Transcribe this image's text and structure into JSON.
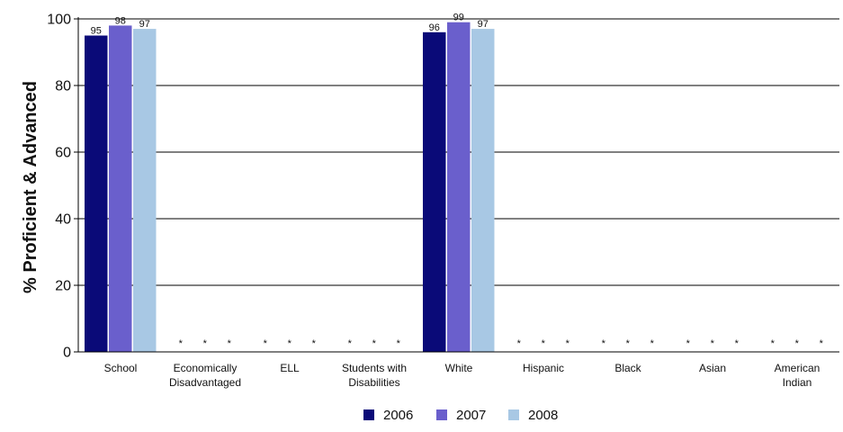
{
  "chart_data": {
    "type": "bar",
    "title": "",
    "xlabel": "",
    "ylabel": "% Proficient & Advanced",
    "ylim": [
      0,
      100
    ],
    "yticks": [
      0,
      20,
      40,
      60,
      80,
      100
    ],
    "grid": true,
    "legend_position": "bottom",
    "categories": [
      [
        "School"
      ],
      [
        "Economically",
        "Disadvantaged"
      ],
      [
        "ELL"
      ],
      [
        "Students with",
        "Disabilities"
      ],
      [
        "White"
      ],
      [
        "Hispanic"
      ],
      [
        "Black"
      ],
      [
        "Asian"
      ],
      [
        "American",
        "Indian"
      ]
    ],
    "series": [
      {
        "name": "2006",
        "color": "#0a0a78",
        "values": [
          95,
          null,
          null,
          null,
          96,
          null,
          null,
          null,
          null
        ],
        "labels": [
          "95",
          "*",
          "*",
          "*",
          "96",
          "*",
          "*",
          "*",
          "*"
        ]
      },
      {
        "name": "2007",
        "color": "#6a5fcc",
        "values": [
          98,
          null,
          null,
          null,
          99,
          null,
          null,
          null,
          null
        ],
        "labels": [
          "98",
          "*",
          "*",
          "*",
          "99",
          "*",
          "*",
          "*",
          "*"
        ]
      },
      {
        "name": "2008",
        "color": "#a8c8e4",
        "values": [
          97,
          null,
          null,
          null,
          97,
          null,
          null,
          null,
          null
        ],
        "labels": [
          "97",
          "*",
          "*",
          "*",
          "97",
          "*",
          "*",
          "*",
          "*"
        ]
      }
    ]
  }
}
